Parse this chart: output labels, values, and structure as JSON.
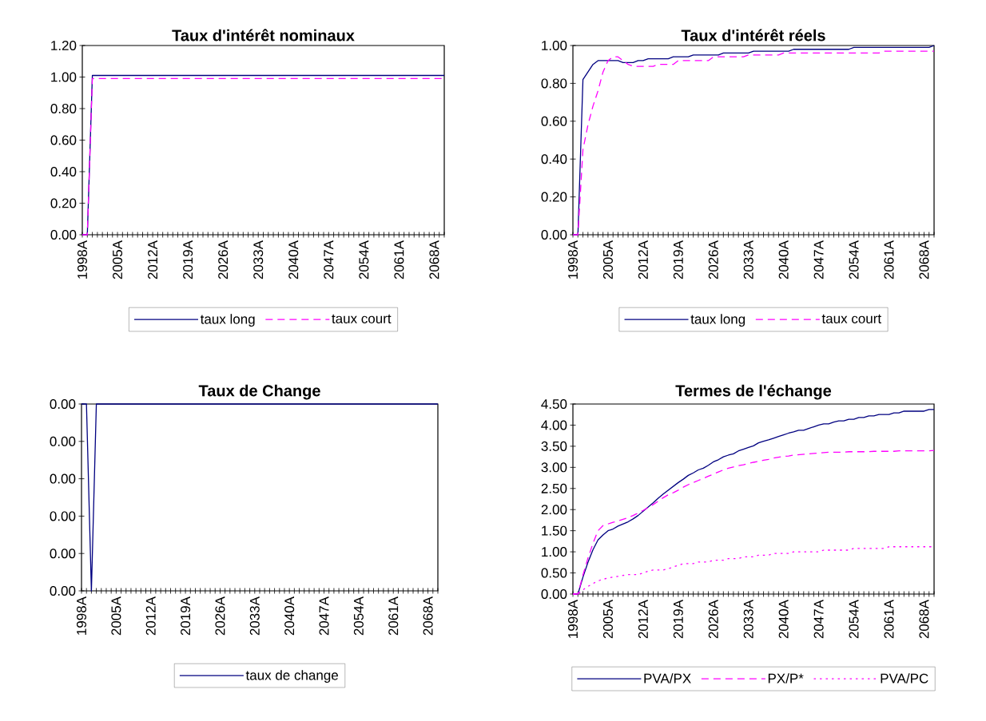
{
  "chart_data": [
    {
      "type": "line",
      "title": "Taux d'intérêt nominaux",
      "categories": [
        "1998A",
        null,
        null,
        null,
        null,
        null,
        null,
        "2005A",
        null,
        null,
        null,
        null,
        null,
        null,
        "2012A",
        null,
        null,
        null,
        null,
        null,
        null,
        "2019A",
        null,
        null,
        null,
        null,
        null,
        null,
        "2026A",
        null,
        null,
        null,
        null,
        null,
        null,
        "2033A",
        null,
        null,
        null,
        null,
        null,
        null,
        "2040A",
        null,
        null,
        null,
        null,
        null,
        null,
        "2047A",
        null,
        null,
        null,
        null,
        null,
        null,
        "2054A",
        null,
        null,
        null,
        null,
        null,
        null,
        "2061A",
        null,
        null,
        null,
        null,
        null,
        null,
        "2068A",
        null,
        null
      ],
      "series": [
        {
          "name": "taux long",
          "color": "#000080",
          "line_style": "solid",
          "values": [
            0,
            0,
            1.01,
            1.01,
            1.01,
            1.01,
            1.01,
            1.01,
            1.01,
            1.01,
            1.01,
            1.01,
            1.01,
            1.01,
            1.01,
            1.01,
            1.01,
            1.01,
            1.01,
            1.01,
            1.01,
            1.01,
            1.01,
            1.01,
            1.01,
            1.01,
            1.01,
            1.01,
            1.01,
            1.01,
            1.01,
            1.01,
            1.01,
            1.01,
            1.01,
            1.01,
            1.01,
            1.01,
            1.01,
            1.01,
            1.01,
            1.01,
            1.01,
            1.01,
            1.01,
            1.01,
            1.01,
            1.01,
            1.01,
            1.01,
            1.01,
            1.01,
            1.01,
            1.01,
            1.01,
            1.01,
            1.01,
            1.01,
            1.01,
            1.01,
            1.01,
            1.01,
            1.01,
            1.01,
            1.01,
            1.01,
            1.01,
            1.01,
            1.01,
            1.01,
            1.01,
            1.01,
            1.01
          ]
        },
        {
          "name": "taux court",
          "color": "#ff00ff",
          "line_style": "dashed",
          "values": [
            0,
            0,
            0.99,
            0.99,
            0.99,
            0.99,
            0.99,
            0.99,
            0.99,
            0.99,
            0.99,
            0.99,
            0.99,
            0.99,
            0.99,
            0.99,
            0.99,
            0.99,
            0.99,
            0.99,
            0.99,
            0.99,
            0.99,
            0.99,
            0.99,
            0.99,
            0.99,
            0.99,
            0.99,
            0.99,
            0.99,
            0.99,
            0.99,
            0.99,
            0.99,
            0.99,
            0.99,
            0.99,
            0.99,
            0.99,
            0.99,
            0.99,
            0.99,
            0.99,
            0.99,
            0.99,
            0.99,
            0.99,
            0.99,
            0.99,
            0.99,
            0.99,
            0.99,
            0.99,
            0.99,
            0.99,
            0.99,
            0.99,
            0.99,
            0.99,
            0.99,
            0.99,
            0.99,
            0.99,
            0.99,
            0.99,
            0.99,
            0.99,
            0.99,
            0.99,
            0.99,
            0.99,
            0.99
          ]
        }
      ],
      "ylim": [
        0,
        1.2
      ],
      "yticks": [
        {
          "value": 0,
          "label": "0.00"
        },
        {
          "value": 0.2,
          "label": "0.20"
        },
        {
          "value": 0.4,
          "label": "0.40"
        },
        {
          "value": 0.6,
          "label": "0.60"
        },
        {
          "value": 0.8,
          "label": "0.80"
        },
        {
          "value": 1.0,
          "label": "1.00"
        },
        {
          "value": 1.2,
          "label": "1.20"
        }
      ],
      "legend": "bottom"
    },
    {
      "type": "line",
      "title": "Taux d'intérêt réels",
      "categories": [
        "1998A",
        null,
        null,
        null,
        null,
        null,
        null,
        "2005A",
        null,
        null,
        null,
        null,
        null,
        null,
        "2012A",
        null,
        null,
        null,
        null,
        null,
        null,
        "2019A",
        null,
        null,
        null,
        null,
        null,
        null,
        "2026A",
        null,
        null,
        null,
        null,
        null,
        null,
        "2033A",
        null,
        null,
        null,
        null,
        null,
        null,
        "2040A",
        null,
        null,
        null,
        null,
        null,
        null,
        "2047A",
        null,
        null,
        null,
        null,
        null,
        null,
        "2054A",
        null,
        null,
        null,
        null,
        null,
        null,
        "2061A",
        null,
        null,
        null,
        null,
        null,
        null,
        "2068A",
        null,
        null
      ],
      "series": [
        {
          "name": "taux long",
          "color": "#000080",
          "line_style": "solid",
          "values": [
            0,
            0,
            0.82,
            0.86,
            0.9,
            0.92,
            0.92,
            0.92,
            0.92,
            0.92,
            0.91,
            0.91,
            0.91,
            0.92,
            0.92,
            0.93,
            0.93,
            0.93,
            0.93,
            0.93,
            0.94,
            0.94,
            0.94,
            0.94,
            0.95,
            0.95,
            0.95,
            0.95,
            0.95,
            0.95,
            0.96,
            0.96,
            0.96,
            0.96,
            0.96,
            0.96,
            0.97,
            0.97,
            0.97,
            0.97,
            0.97,
            0.97,
            0.97,
            0.97,
            0.98,
            0.98,
            0.98,
            0.98,
            0.98,
            0.98,
            0.98,
            0.98,
            0.98,
            0.98,
            0.98,
            0.98,
            0.99,
            0.99,
            0.99,
            0.99,
            0.99,
            0.99,
            0.99,
            0.99,
            0.99,
            0.99,
            0.99,
            0.99,
            0.99,
            0.99,
            0.99,
            0.99,
            1.0
          ]
        },
        {
          "name": "taux court",
          "color": "#ff00ff",
          "line_style": "dashed",
          "values": [
            0,
            0,
            0.45,
            0.58,
            0.68,
            0.76,
            0.86,
            0.92,
            0.94,
            0.94,
            0.92,
            0.9,
            0.89,
            0.89,
            0.89,
            0.89,
            0.89,
            0.9,
            0.9,
            0.9,
            0.9,
            0.92,
            0.92,
            0.92,
            0.92,
            0.92,
            0.92,
            0.92,
            0.94,
            0.94,
            0.94,
            0.94,
            0.94,
            0.94,
            0.94,
            0.95,
            0.95,
            0.95,
            0.95,
            0.95,
            0.95,
            0.95,
            0.96,
            0.96,
            0.96,
            0.96,
            0.96,
            0.96,
            0.96,
            0.96,
            0.96,
            0.96,
            0.96,
            0.96,
            0.96,
            0.96,
            0.96,
            0.96,
            0.96,
            0.96,
            0.96,
            0.96,
            0.97,
            0.97,
            0.97,
            0.97,
            0.97,
            0.97,
            0.97,
            0.97,
            0.97,
            0.97,
            0.97
          ]
        }
      ],
      "ylim": [
        0,
        1.0
      ],
      "yticks": [
        {
          "value": 0,
          "label": "0.00"
        },
        {
          "value": 0.2,
          "label": "0.20"
        },
        {
          "value": 0.4,
          "label": "0.40"
        },
        {
          "value": 0.6,
          "label": "0.60"
        },
        {
          "value": 0.8,
          "label": "0.80"
        },
        {
          "value": 1.0,
          "label": "1.00"
        }
      ],
      "legend": "bottom"
    },
    {
      "type": "line",
      "title": "Taux de Change",
      "categories": [
        "1998A",
        null,
        null,
        null,
        null,
        null,
        null,
        "2005A",
        null,
        null,
        null,
        null,
        null,
        null,
        "2012A",
        null,
        null,
        null,
        null,
        null,
        null,
        "2019A",
        null,
        null,
        null,
        null,
        null,
        null,
        "2026A",
        null,
        null,
        null,
        null,
        null,
        null,
        "2033A",
        null,
        null,
        null,
        null,
        null,
        null,
        "2040A",
        null,
        null,
        null,
        null,
        null,
        null,
        "2047A",
        null,
        null,
        null,
        null,
        null,
        null,
        "2054A",
        null,
        null,
        null,
        null,
        null,
        null,
        "2061A",
        null,
        null,
        null,
        null,
        null,
        null,
        "2068A",
        null,
        null
      ],
      "series": [
        {
          "name": "taux de change",
          "color": "#000080",
          "line_style": "solid",
          "values": [
            0.0025,
            0.0025,
            0,
            0.0025,
            0.0025,
            0.0025,
            0.0025,
            0.0025,
            0.0025,
            0.0025,
            0.0025,
            0.0025,
            0.0025,
            0.0025,
            0.0025,
            0.0025,
            0.0025,
            0.0025,
            0.0025,
            0.0025,
            0.0025,
            0.0025,
            0.0025,
            0.0025,
            0.0025,
            0.0025,
            0.0025,
            0.0025,
            0.0025,
            0.0025,
            0.0025,
            0.0025,
            0.0025,
            0.0025,
            0.0025,
            0.0025,
            0.0025,
            0.0025,
            0.0025,
            0.0025,
            0.0025,
            0.0025,
            0.0025,
            0.0025,
            0.0025,
            0.0025,
            0.0025,
            0.0025,
            0.0025,
            0.0025,
            0.0025,
            0.0025,
            0.0025,
            0.0025,
            0.0025,
            0.0025,
            0.0025,
            0.0025,
            0.0025,
            0.0025,
            0.0025,
            0.0025,
            0.0025,
            0.0025,
            0.0025,
            0.0025,
            0.0025,
            0.0025,
            0.0025,
            0.0025,
            0.0025,
            0.0025,
            0.0025
          ]
        }
      ],
      "ylim": [
        0,
        0.0025
      ],
      "yticks": [
        {
          "value": 0,
          "label": "0.00"
        },
        {
          "value": 0.0005,
          "label": "0.00"
        },
        {
          "value": 0.001,
          "label": "0.00"
        },
        {
          "value": 0.0015,
          "label": "0.00"
        },
        {
          "value": 0.002,
          "label": "0.00"
        },
        {
          "value": 0.0025,
          "label": "0.00"
        }
      ],
      "legend": "bottom"
    },
    {
      "type": "line",
      "title": "Termes de l'échange",
      "categories": [
        "1998A",
        null,
        null,
        null,
        null,
        null,
        null,
        "2005A",
        null,
        null,
        null,
        null,
        null,
        null,
        "2012A",
        null,
        null,
        null,
        null,
        null,
        null,
        "2019A",
        null,
        null,
        null,
        null,
        null,
        null,
        "2026A",
        null,
        null,
        null,
        null,
        null,
        null,
        "2033A",
        null,
        null,
        null,
        null,
        null,
        null,
        "2040A",
        null,
        null,
        null,
        null,
        null,
        null,
        "2047A",
        null,
        null,
        null,
        null,
        null,
        null,
        "2054A",
        null,
        null,
        null,
        null,
        null,
        null,
        "2061A",
        null,
        null,
        null,
        null,
        null,
        null,
        "2068A",
        null,
        null
      ],
      "series": [
        {
          "name": "PVA/PX",
          "color": "#000080",
          "line_style": "solid",
          "values": [
            0,
            0,
            0.4,
            0.75,
            1.05,
            1.28,
            1.4,
            1.5,
            1.54,
            1.61,
            1.66,
            1.71,
            1.78,
            1.86,
            1.96,
            2.06,
            2.16,
            2.27,
            2.37,
            2.46,
            2.55,
            2.64,
            2.72,
            2.81,
            2.87,
            2.94,
            2.98,
            3.05,
            3.13,
            3.18,
            3.25,
            3.29,
            3.32,
            3.39,
            3.43,
            3.47,
            3.51,
            3.58,
            3.62,
            3.65,
            3.69,
            3.73,
            3.77,
            3.81,
            3.84,
            3.88,
            3.88,
            3.92,
            3.96,
            4.0,
            4.03,
            4.03,
            4.07,
            4.1,
            4.1,
            4.14,
            4.14,
            4.18,
            4.18,
            4.22,
            4.22,
            4.25,
            4.25,
            4.25,
            4.29,
            4.29,
            4.33,
            4.33,
            4.33,
            4.33,
            4.33,
            4.37,
            4.37
          ]
        },
        {
          "name": "PX/P*",
          "color": "#ff00ff",
          "line_style": "dashed",
          "values": [
            0,
            0,
            0.45,
            0.85,
            1.2,
            1.5,
            1.62,
            1.66,
            1.7,
            1.73,
            1.77,
            1.81,
            1.86,
            1.92,
            1.98,
            2.05,
            2.12,
            2.2,
            2.28,
            2.35,
            2.4,
            2.46,
            2.53,
            2.59,
            2.64,
            2.69,
            2.74,
            2.79,
            2.84,
            2.89,
            2.94,
            2.98,
            3.01,
            3.04,
            3.06,
            3.09,
            3.12,
            3.14,
            3.17,
            3.19,
            3.22,
            3.24,
            3.26,
            3.27,
            3.29,
            3.3,
            3.31,
            3.32,
            3.33,
            3.34,
            3.35,
            3.36,
            3.36,
            3.36,
            3.36,
            3.37,
            3.37,
            3.37,
            3.37,
            3.37,
            3.38,
            3.38,
            3.38,
            3.38,
            3.38,
            3.39,
            3.39,
            3.39,
            3.39,
            3.39,
            3.39,
            3.39,
            3.4
          ]
        },
        {
          "name": "PVA/PC",
          "color": "#ff00ff",
          "line_style": "dotted",
          "values": [
            0,
            0,
            0.1,
            0.18,
            0.25,
            0.31,
            0.35,
            0.38,
            0.4,
            0.42,
            0.44,
            0.46,
            0.46,
            0.46,
            0.5,
            0.54,
            0.57,
            0.57,
            0.57,
            0.6,
            0.64,
            0.68,
            0.72,
            0.72,
            0.72,
            0.76,
            0.76,
            0.76,
            0.8,
            0.8,
            0.8,
            0.84,
            0.84,
            0.84,
            0.88,
            0.88,
            0.88,
            0.92,
            0.92,
            0.92,
            0.96,
            0.96,
            0.96,
            0.96,
            1.0,
            1.0,
            1.0,
            1.0,
            1.0,
            1.0,
            1.04,
            1.04,
            1.04,
            1.04,
            1.04,
            1.04,
            1.08,
            1.08,
            1.08,
            1.08,
            1.08,
            1.08,
            1.08,
            1.12,
            1.12,
            1.12,
            1.12,
            1.12,
            1.12,
            1.12,
            1.12,
            1.12,
            1.12
          ]
        }
      ],
      "ylim": [
        0,
        4.5
      ],
      "yticks": [
        {
          "value": 0,
          "label": "0.00"
        },
        {
          "value": 0.5,
          "label": "0.50"
        },
        {
          "value": 1.0,
          "label": "1.00"
        },
        {
          "value": 1.5,
          "label": "1.50"
        },
        {
          "value": 2.0,
          "label": "2.00"
        },
        {
          "value": 2.5,
          "label": "2.50"
        },
        {
          "value": 3.0,
          "label": "3.00"
        },
        {
          "value": 3.5,
          "label": "3.50"
        },
        {
          "value": 4.0,
          "label": "4.00"
        },
        {
          "value": 4.5,
          "label": "4.50"
        }
      ],
      "legend": "bottom"
    }
  ]
}
